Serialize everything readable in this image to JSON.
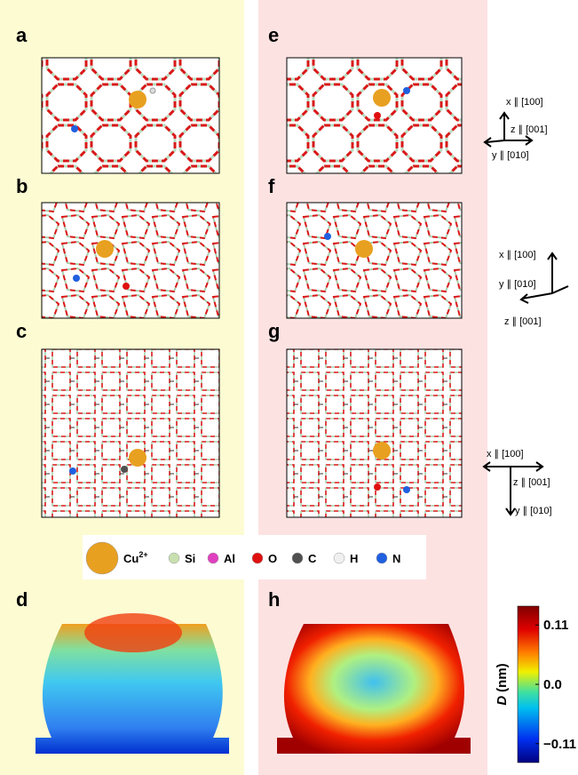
{
  "panels": [
    "a",
    "b",
    "c",
    "d",
    "e",
    "f",
    "g",
    "h"
  ],
  "axes_sets": [
    {
      "x": "x ∥ [100]",
      "z": "z ∥ [001]",
      "y": "y ∥ [010]"
    },
    {
      "x": "x ∥ [100]",
      "y": "y ∥ [010]",
      "z": "z ∥ [001]"
    },
    {
      "x": "x ∥ [100]",
      "z": "z ∥ [001]",
      "y": "y ∥ [010]"
    }
  ],
  "legend": [
    {
      "label": "Cu",
      "superscript": "2+",
      "color": "#e8a020"
    },
    {
      "label": "Si",
      "color": "#c8e0b0"
    },
    {
      "label": "Al",
      "color": "#e040c0"
    },
    {
      "label": "O",
      "color": "#e01010"
    },
    {
      "label": "C",
      "color": "#505050"
    },
    {
      "label": "H",
      "color": "#f0f0f0"
    },
    {
      "label": "N",
      "color": "#2060e0"
    }
  ],
  "colorbar": {
    "symbol": "D",
    "unit": "(nm)",
    "lim": [
      -0.145,
      0.145
    ],
    "ticks": [
      0.11,
      {
        "value": 0,
        "label": "0.0"
      },
      {
        "value": -0.11,
        "label": "−0.11"
      }
    ]
  }
}
